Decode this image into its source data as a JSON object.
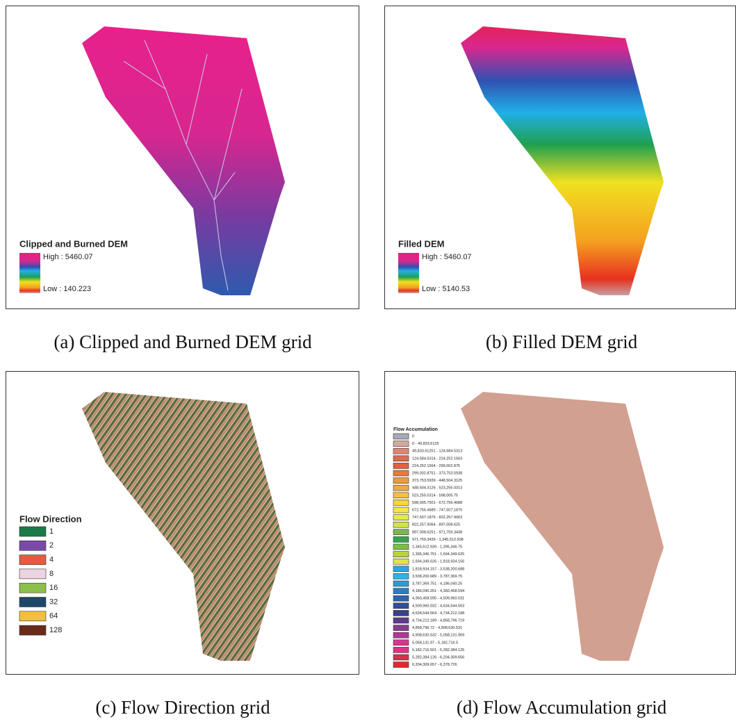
{
  "panels": [
    {
      "caption": "(a) Clipped and Burned DEM grid",
      "legend": {
        "title": "Clipped and Burned DEM",
        "high": "High : 5460.07",
        "low": "Low : 140.223"
      }
    },
    {
      "caption": "(b) Filled DEM grid",
      "legend": {
        "title": "Filled DEM",
        "high": "High : 5460.07",
        "low": "Low : 5140.53"
      }
    },
    {
      "caption": "(c) Flow Direction grid",
      "legend": {
        "title": "Flow Direction",
        "items": [
          {
            "label": "1",
            "color": "#1a7a48"
          },
          {
            "label": "2",
            "color": "#7a4aa8"
          },
          {
            "label": "4",
            "color": "#e85a40"
          },
          {
            "label": "8",
            "color": "#ecd4e2"
          },
          {
            "label": "16",
            "color": "#8cc04a"
          },
          {
            "label": "32",
            "color": "#1e4868"
          },
          {
            "label": "64",
            "color": "#f2c040"
          },
          {
            "label": "128",
            "color": "#6a2a1a"
          }
        ]
      }
    },
    {
      "caption": "(d) Flow Accumulation grid",
      "legend": {
        "title": "Flow Accumulation",
        "items": [
          {
            "label": "0",
            "color": "#a9a9b9"
          },
          {
            "label": "0 - 49,833.6125",
            "color": "#d8a79b"
          },
          {
            "label": "49,833.61251 - 124,584.5313",
            "color": "#dd8571"
          },
          {
            "label": "124,584.5314 - 224,252.1563",
            "color": "#e06a4e"
          },
          {
            "label": "224,252.1564 - 299,002.875",
            "color": "#e45f3c"
          },
          {
            "label": "299,002.8751 - 373,753.5938",
            "color": "#e87a35"
          },
          {
            "label": "373,753.5939 - 448,504.3125",
            "color": "#ef9a37"
          },
          {
            "label": "448,504.3126 - 523,255.0313",
            "color": "#f0a940"
          },
          {
            "label": "523,255.0314 - 598,005.75",
            "color": "#f5c040"
          },
          {
            "label": "598,005.7501 - 672,756.4688",
            "color": "#f9d63a"
          },
          {
            "label": "672,756.4689 - 747,507.1875",
            "color": "#f7e642"
          },
          {
            "label": "747,507.1876 - 822,257.9063",
            "color": "#e7e84a"
          },
          {
            "label": "822,257.9064 - 897,008.625",
            "color": "#d2e24c"
          },
          {
            "label": "897,008.6251 - 971,759.3438",
            "color": "#7ab84f"
          },
          {
            "label": "971,759.3439 - 1,345,512.938",
            "color": "#2ea84a"
          },
          {
            "label": "1,345,512.939 - 1,395,346.75",
            "color": "#7ac043"
          },
          {
            "label": "1,395,346.751 - 1,694,349.625",
            "color": "#b8d43e"
          },
          {
            "label": "1,694,349.626 - 1,818,934.156",
            "color": "#e4e246"
          },
          {
            "label": "1,818,934.157 - 3,538,200.688",
            "color": "#2aa9e0"
          },
          {
            "label": "3,538,200.689 - 3,787,369.75",
            "color": "#30b3e8"
          },
          {
            "label": "3,787,369.751 - 4,186,040.25",
            "color": "#2a9bd8"
          },
          {
            "label": "4,186,040.251 - 4,360,458.594",
            "color": "#2a7ec0"
          },
          {
            "label": "4,360,458.595 - 4,509,960.031",
            "color": "#2e64ab"
          },
          {
            "label": "4,509,960.032 - 4,634,544.563",
            "color": "#2f4f96"
          },
          {
            "label": "4,634,544.564 - 4,734,212.188",
            "color": "#3a3f8a"
          },
          {
            "label": "4,734,212.189 - 4,858,796.719",
            "color": "#5e3a8c"
          },
          {
            "label": "4,858,796.72 - 4,908,630.531",
            "color": "#8a3a8f"
          },
          {
            "label": "4,908,630.532 - 5,058,131.969",
            "color": "#b03894"
          },
          {
            "label": "5,058,131.97 - 5,182,716.5",
            "color": "#d8358f"
          },
          {
            "label": "5,182,716.501 - 5,282,384.125",
            "color": "#e03285"
          },
          {
            "label": "5,282,384.126 - 6,204,309.656",
            "color": "#d8304a"
          },
          {
            "label": "6,204,309.657 - 6,378,726",
            "color": "#e02a2a"
          }
        ]
      }
    }
  ]
}
